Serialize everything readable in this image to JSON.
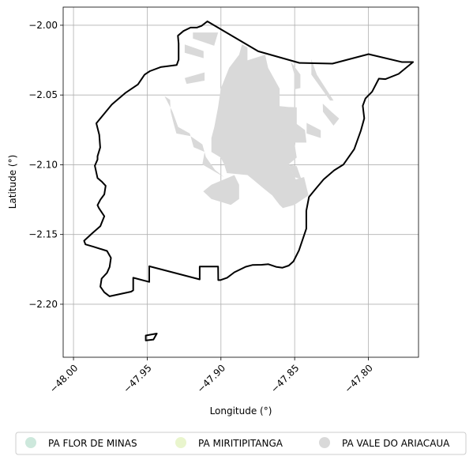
{
  "chart_data": {
    "type": "map",
    "xlabel": "Longitude (°)",
    "ylabel": "Latitude (°)",
    "xlim": [
      -48.007,
      -47.766
    ],
    "ylim": [
      -2.238,
      -1.987
    ],
    "x_ticks": [
      -48.0,
      -47.95,
      -47.9,
      -47.85,
      -47.8
    ],
    "x_tick_labels": [
      "−48.00",
      "−47.95",
      "−47.90",
      "−47.85",
      "−47.80"
    ],
    "y_ticks": [
      -2.0,
      -2.05,
      -2.1,
      -2.15,
      -2.2
    ],
    "y_tick_labels": [
      "−2.00",
      "−2.05",
      "−2.10",
      "−2.15",
      "−2.20"
    ],
    "grid": true,
    "legend_position": "bottom",
    "legend": [
      {
        "label": "PA FLOR DE MINAS",
        "color": "#cde8dc"
      },
      {
        "label": "PA MIRITIPITANGA",
        "color": "#e9f5cd"
      },
      {
        "label": "PA VALE DO ARIACAUA",
        "color": "#d9d9d9"
      }
    ],
    "boundary": {
      "color": "#000000",
      "main": [
        [
          -47.9092,
          -1.9972
        ],
        [
          -47.8747,
          -2.0187
        ],
        [
          -47.8467,
          -2.027
        ],
        [
          -47.8244,
          -2.0275
        ],
        [
          -47.7999,
          -2.0207
        ],
        [
          -47.7772,
          -2.0264
        ],
        [
          -47.7697,
          -2.0264
        ],
        [
          -47.7795,
          -2.0349
        ],
        [
          -47.7884,
          -2.0386
        ],
        [
          -47.7929,
          -2.0383
        ],
        [
          -47.7975,
          -2.0477
        ],
        [
          -47.802,
          -2.0525
        ],
        [
          -47.8038,
          -2.0577
        ],
        [
          -47.8028,
          -2.0667
        ],
        [
          -47.8051,
          -2.0755
        ],
        [
          -47.8096,
          -2.0888
        ],
        [
          -47.8169,
          -2.0998
        ],
        [
          -47.8232,
          -2.104
        ],
        [
          -47.8304,
          -2.1105
        ],
        [
          -47.8358,
          -2.1173
        ],
        [
          -47.8403,
          -2.1231
        ],
        [
          -47.8421,
          -2.133
        ],
        [
          -47.8421,
          -2.1458
        ],
        [
          -47.8471,
          -2.1614
        ],
        [
          -47.8508,
          -2.1692
        ],
        [
          -47.854,
          -2.1723
        ],
        [
          -47.8583,
          -2.1738
        ],
        [
          -47.8626,
          -2.1732
        ],
        [
          -47.8678,
          -2.1713
        ],
        [
          -47.8723,
          -2.1717
        ],
        [
          -47.8787,
          -2.1719
        ],
        [
          -47.8832,
          -2.1731
        ],
        [
          -47.8909,
          -2.1771
        ],
        [
          -47.8958,
          -2.181
        ],
        [
          -47.9005,
          -2.1827
        ],
        [
          -47.9018,
          -2.1827
        ],
        [
          -47.9019,
          -2.173
        ],
        [
          -47.9144,
          -2.173
        ],
        [
          -47.9144,
          -2.1822
        ],
        [
          -47.9486,
          -2.1728
        ],
        [
          -47.9486,
          -2.184
        ],
        [
          -47.9595,
          -2.181
        ],
        [
          -47.9595,
          -2.19
        ],
        [
          -47.9609,
          -2.191
        ],
        [
          -47.9755,
          -2.1943
        ],
        [
          -47.9791,
          -2.1914
        ],
        [
          -47.9818,
          -2.1874
        ],
        [
          -47.9809,
          -2.1816
        ],
        [
          -47.9773,
          -2.1775
        ],
        [
          -47.9755,
          -2.1733
        ],
        [
          -47.9746,
          -2.1667
        ],
        [
          -47.9773,
          -2.1618
        ],
        [
          -47.9864,
          -2.1588
        ],
        [
          -47.9919,
          -2.1571
        ],
        [
          -47.9928,
          -2.1545
        ],
        [
          -47.9873,
          -2.1491
        ],
        [
          -47.9818,
          -2.144
        ],
        [
          -47.9791,
          -2.1369
        ],
        [
          -47.9828,
          -2.131
        ],
        [
          -47.9837,
          -2.129
        ],
        [
          -47.9818,
          -2.1251
        ],
        [
          -47.9791,
          -2.1212
        ],
        [
          -47.9782,
          -2.1151
        ],
        [
          -47.9809,
          -2.112
        ],
        [
          -47.9837,
          -2.1095
        ],
        [
          -47.9855,
          -2.1007
        ],
        [
          -47.9837,
          -2.0963
        ],
        [
          -47.9837,
          -2.0939
        ],
        [
          -47.9819,
          -2.0876
        ],
        [
          -47.9825,
          -2.0785
        ],
        [
          -47.9845,
          -2.0703
        ],
        [
          -47.974,
          -2.0568
        ],
        [
          -47.9649,
          -2.0486
        ],
        [
          -47.9563,
          -2.0424
        ],
        [
          -47.9518,
          -2.0354
        ],
        [
          -47.9482,
          -2.0329
        ],
        [
          -47.9409,
          -2.03
        ],
        [
          -47.93,
          -2.0285
        ],
        [
          -47.9287,
          -2.0247
        ],
        [
          -47.9287,
          -2.0131
        ],
        [
          -47.9292,
          -2.0075
        ],
        [
          -47.9254,
          -2.0041
        ],
        [
          -47.9206,
          -2.0017
        ],
        [
          -47.9164,
          -2.0017
        ],
        [
          -47.9131,
          -2.0004
        ],
        [
          -47.9092,
          -1.9972
        ]
      ],
      "islet": [
        [
          -47.951,
          -2.226
        ],
        [
          -47.951,
          -2.2224
        ],
        [
          -47.9435,
          -2.221
        ],
        [
          -47.9458,
          -2.2253
        ],
        [
          -47.951,
          -2.226
        ]
      ]
    },
    "urban_area": {
      "color": "#d9d9d9",
      "polygons": [
        [
          [
            -47.8857,
            -2.0137
          ],
          [
            -47.882,
            -2.0159
          ],
          [
            -47.882,
            -2.0252
          ],
          [
            -47.87,
            -2.0211
          ],
          [
            -47.868,
            -2.0305
          ],
          [
            -47.8602,
            -2.0454
          ],
          [
            -47.8602,
            -2.058
          ],
          [
            -47.8542,
            -2.0586
          ],
          [
            -47.8486,
            -2.0588
          ],
          [
            -47.8486,
            -2.0708
          ],
          [
            -47.843,
            -2.0751
          ],
          [
            -47.842,
            -2.0841
          ],
          [
            -47.8502,
            -2.0841
          ],
          [
            -47.8486,
            -2.0949
          ],
          [
            -47.8542,
            -2.0998
          ],
          [
            -47.8492,
            -2.1105
          ],
          [
            -47.8436,
            -2.1088
          ],
          [
            -47.8406,
            -2.122
          ],
          [
            -47.8502,
            -2.1288
          ],
          [
            -47.858,
            -2.131
          ],
          [
            -47.8602,
            -2.1288
          ],
          [
            -47.8652,
            -2.122
          ],
          [
            -47.872,
            -2.1162
          ],
          [
            -47.8782,
            -2.1107
          ],
          [
            -47.882,
            -2.1074
          ],
          [
            -47.896,
            -2.106
          ],
          [
            -47.8978,
            -2.0998
          ],
          [
            -47.9001,
            -2.0949
          ],
          [
            -47.9065,
            -2.0908
          ],
          [
            -47.9065,
            -2.0808
          ],
          [
            -47.9045,
            -2.0729
          ],
          [
            -47.9019,
            -2.0586
          ],
          [
            -47.9001,
            -2.0454
          ],
          [
            -47.8944,
            -2.0305
          ],
          [
            -47.8877,
            -2.0211
          ],
          [
            -47.8857,
            -2.0137
          ]
        ],
        [
          [
            -47.919,
            -2.0052
          ],
          [
            -47.919,
            -2.0095
          ],
          [
            -47.9046,
            -2.0147
          ],
          [
            -47.9019,
            -2.0052
          ],
          [
            -47.919,
            -2.0052
          ]
        ],
        [
          [
            -47.9246,
            -2.0138
          ],
          [
            -47.9246,
            -2.0197
          ],
          [
            -47.9118,
            -2.0236
          ],
          [
            -47.9118,
            -2.0185
          ],
          [
            -47.9246,
            -2.0138
          ]
        ],
        [
          [
            -47.9246,
            -2.0378
          ],
          [
            -47.9111,
            -2.0338
          ],
          [
            -47.9111,
            -2.0397
          ],
          [
            -47.9233,
            -2.042
          ],
          [
            -47.9246,
            -2.0378
          ]
        ],
        [
          [
            -47.9383,
            -2.0508
          ],
          [
            -47.9345,
            -2.0534
          ],
          [
            -47.9341,
            -2.0619
          ],
          [
            -47.9318,
            -2.0716
          ],
          [
            -47.9302,
            -2.0776
          ],
          [
            -47.9206,
            -2.0795
          ],
          [
            -47.9126,
            -2.0854
          ],
          [
            -47.9102,
            -2.0944
          ],
          [
            -47.904,
            -2.1037
          ],
          [
            -47.8979,
            -2.1088
          ],
          [
            -47.9126,
            -2.0998
          ],
          [
            -47.9111,
            -2.0908
          ],
          [
            -47.9185,
            -2.0874
          ],
          [
            -47.9211,
            -2.0776
          ],
          [
            -47.929,
            -2.0729
          ],
          [
            -47.9328,
            -2.0619
          ],
          [
            -47.9383,
            -2.0508
          ]
        ],
        [
          [
            -47.8909,
            -2.1074
          ],
          [
            -47.8877,
            -2.1143
          ],
          [
            -47.8877,
            -2.1245
          ],
          [
            -47.8933,
            -2.1288
          ],
          [
            -47.9065,
            -2.1245
          ],
          [
            -47.912,
            -2.1191
          ],
          [
            -47.9065,
            -2.1143
          ],
          [
            -47.8909,
            -2.1074
          ]
        ],
        [
          [
            -47.8542,
            -2.0998
          ],
          [
            -47.8502,
            -2.1088
          ],
          [
            -47.8454,
            -2.1105
          ],
          [
            -47.8486,
            -2.101
          ],
          [
            -47.8542,
            -2.0998
          ]
        ],
        [
          [
            -47.8652,
            -2.07
          ],
          [
            -47.8652,
            -2.0795
          ],
          [
            -47.8565,
            -2.075
          ],
          [
            -47.8565,
            -2.07
          ],
          [
            -47.8652,
            -2.07
          ]
        ],
        [
          [
            -47.8419,
            -2.07
          ],
          [
            -47.8323,
            -2.0752
          ],
          [
            -47.8323,
            -2.0808
          ],
          [
            -47.8419,
            -2.0776
          ],
          [
            -47.8419,
            -2.07
          ]
        ],
        [
          [
            -47.8309,
            -2.0562
          ],
          [
            -47.8251,
            -2.062
          ],
          [
            -47.8198,
            -2.0669
          ],
          [
            -47.8236,
            -2.072
          ],
          [
            -47.8308,
            -2.062
          ],
          [
            -47.8309,
            -2.0562
          ]
        ],
        [
          [
            -47.8387,
            -2.0244
          ],
          [
            -47.8387,
            -2.0354
          ],
          [
            -47.826,
            -2.054
          ],
          [
            -47.8236,
            -2.054
          ],
          [
            -47.835,
            -2.0354
          ],
          [
            -47.8387,
            -2.0244
          ]
        ],
        [
          [
            -47.8527,
            -2.026
          ],
          [
            -47.8461,
            -2.0354
          ],
          [
            -47.8461,
            -2.045
          ],
          [
            -47.8502,
            -2.046
          ],
          [
            -47.8502,
            -2.0354
          ],
          [
            -47.8527,
            -2.026
          ]
        ]
      ]
    }
  }
}
